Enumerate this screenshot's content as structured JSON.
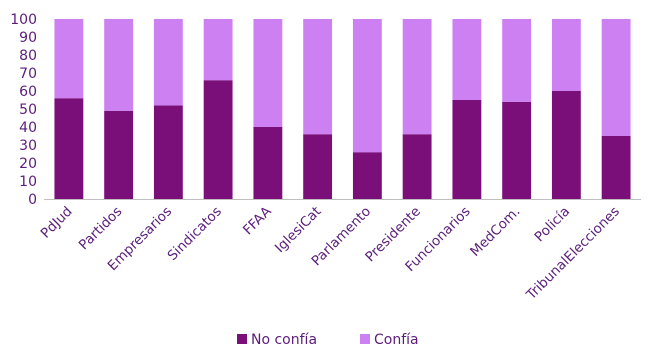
{
  "chart_data": {
    "type": "bar",
    "stacked": true,
    "categories": [
      "PdJud",
      "Partidos",
      "Empresarios",
      "Sindicatos",
      "FFAA",
      "IglesiCat",
      "Parlamento",
      "Presidente",
      "Funcionarios",
      "MedCom.",
      "Policía",
      "TribunalElecciones"
    ],
    "series": [
      {
        "name": "No confía",
        "color": "#7b0f7a",
        "values": [
          56,
          49,
          52,
          66,
          40,
          36,
          26,
          36,
          55,
          54,
          60,
          35
        ]
      },
      {
        "name": "Confía",
        "color": "#cc80f2",
        "values": [
          44,
          51,
          48,
          34,
          60,
          64,
          74,
          64,
          45,
          46,
          40,
          65
        ]
      }
    ],
    "yticks": [
      "0",
      "10",
      "20",
      "30",
      "40",
      "50",
      "60",
      "70",
      "80",
      "90",
      "100"
    ],
    "ylim": [
      0,
      100
    ],
    "legend_position": "bottom",
    "grid": false
  }
}
